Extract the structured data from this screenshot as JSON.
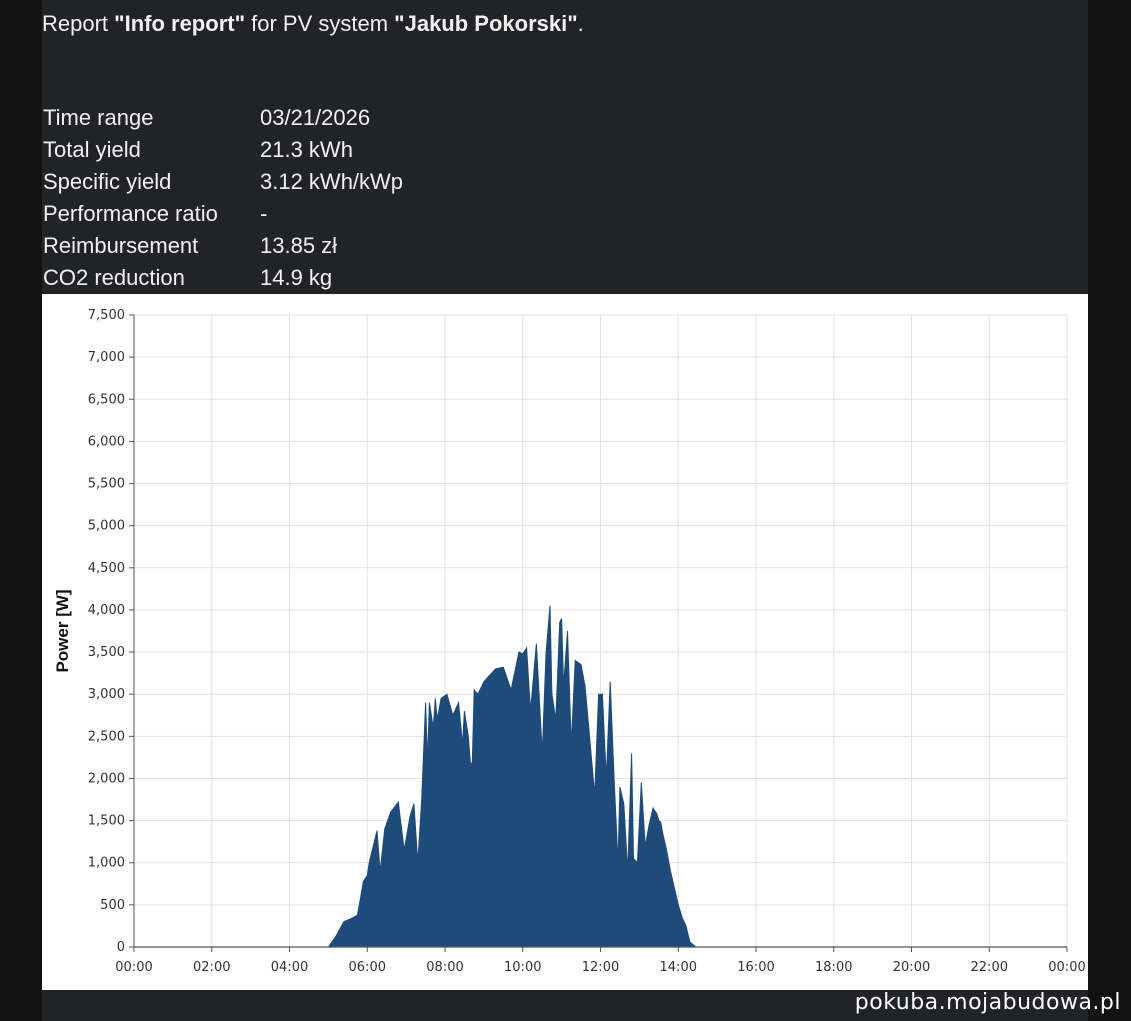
{
  "report": {
    "prefix": "Report ",
    "name": "\"Info report\"",
    "middle": " for PV system ",
    "system": "\"Jakub Pokorski\"",
    "suffix": "."
  },
  "info": [
    {
      "label": "Time range",
      "value": "03/21/2026"
    },
    {
      "label": "Total yield",
      "value": "21.3 kWh"
    },
    {
      "label": "Specific yield",
      "value": "3.12 kWh/kWp"
    },
    {
      "label": "Performance ratio",
      "value": "-"
    },
    {
      "label": "Reimbursement",
      "value": "13.85 zł"
    },
    {
      "label": "CO2 reduction",
      "value": "14.9 kg"
    }
  ],
  "watermark": "pokuba.mojabudowa.pl",
  "colors": {
    "series": "#1f4b7a",
    "grid": "#e3e3e3",
    "axis": "#555555"
  },
  "chart_data": {
    "type": "area",
    "title": "",
    "xlabel": "",
    "ylabel": "Power [W]",
    "xlim": [
      0,
      24
    ],
    "ylim": [
      0,
      7500
    ],
    "y_ticks": [
      0,
      500,
      1000,
      1500,
      2000,
      2500,
      3000,
      3500,
      4000,
      4500,
      5000,
      5500,
      6000,
      6500,
      7000,
      7500
    ],
    "y_tick_labels": [
      "0",
      "500",
      "1,000",
      "1,500",
      "2,000",
      "2,500",
      "3,000",
      "3,500",
      "4,000",
      "4,500",
      "5,000",
      "5,500",
      "6,000",
      "6,500",
      "7,000",
      "7,500"
    ],
    "x_ticks": [
      0,
      2,
      4,
      6,
      8,
      10,
      12,
      14,
      16,
      18,
      20,
      22,
      24
    ],
    "x_tick_labels": [
      "00:00",
      "02:00",
      "04:00",
      "06:00",
      "08:00",
      "10:00",
      "12:00",
      "14:00",
      "16:00",
      "18:00",
      "20:00",
      "22:00",
      "00:00"
    ],
    "grid": true,
    "legend": "none",
    "series": [
      {
        "x": [
          5.0,
          5.2,
          5.4,
          5.6,
          5.75,
          5.9,
          6.0,
          6.05,
          6.25,
          6.33,
          6.38,
          6.45,
          6.6,
          6.8,
          6.95,
          7.1,
          7.2,
          7.3,
          7.4,
          7.5,
          7.55,
          7.6,
          7.7,
          7.75,
          7.8,
          7.9,
          8.05,
          8.2,
          8.35,
          8.45,
          8.5,
          8.6,
          8.65,
          8.7,
          8.75,
          8.85,
          8.95,
          9.0,
          9.1,
          9.3,
          9.5,
          9.7,
          9.9,
          10.0,
          10.1,
          10.2,
          10.35,
          10.5,
          10.6,
          10.7,
          10.75,
          10.85,
          10.95,
          11.0,
          11.05,
          11.15,
          11.25,
          11.35,
          11.5,
          11.6,
          11.7,
          11.85,
          11.95,
          12.05,
          12.15,
          12.25,
          12.35,
          12.45,
          12.5,
          12.6,
          12.7,
          12.8,
          12.85,
          12.95,
          13.05,
          13.15,
          13.25,
          13.35,
          13.45,
          13.5,
          13.55,
          13.6,
          13.7,
          13.8,
          13.9,
          14.0,
          14.1,
          14.2,
          14.25,
          14.3,
          14.45,
          14.55,
          14.65,
          14.7,
          14.8,
          14.9,
          15.0,
          15.1,
          15.25,
          15.4,
          15.55,
          15.7,
          15.85,
          16.0,
          16.2,
          16.4,
          16.6,
          16.8
        ],
        "values": [
          0,
          130,
          300,
          340,
          380,
          780,
          850,
          1000,
          1380,
          900,
          1100,
          1400,
          1600,
          1720,
          1150,
          1550,
          1700,
          1000,
          1750,
          2900,
          2200,
          2900,
          2600,
          2950,
          2700,
          2950,
          3000,
          2750,
          2900,
          2400,
          2800,
          2500,
          2200,
          2150,
          3050,
          3000,
          3100,
          3150,
          3200,
          3300,
          3320,
          3050,
          3500,
          3480,
          3550,
          2800,
          3600,
          2300,
          3500,
          4050,
          3000,
          2700,
          3850,
          3900,
          3100,
          3750,
          2400,
          3400,
          3350,
          3100,
          2600,
          1800,
          3000,
          3000,
          2000,
          3150,
          2000,
          1000,
          1900,
          1700,
          900,
          2300,
          1050,
          1000,
          1950,
          1200,
          1450,
          1650,
          1580,
          1500,
          1480,
          1350,
          1150,
          900,
          700,
          500,
          350,
          250,
          150,
          60,
          0,
          0,
          0,
          0,
          0,
          0,
          0,
          0,
          0,
          0,
          0,
          0,
          0,
          0,
          0,
          0,
          0,
          0
        ]
      }
    ]
  }
}
